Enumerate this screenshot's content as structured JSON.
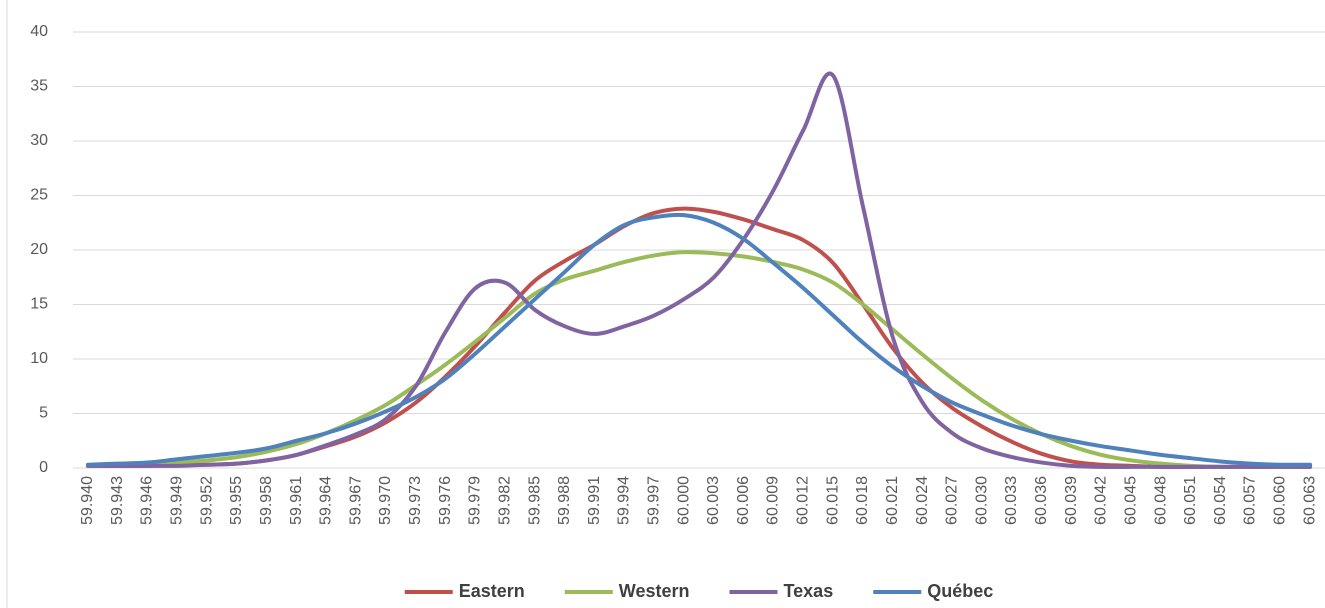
{
  "chart_data": {
    "type": "line",
    "categories": [
      "59.940",
      "59.943",
      "59.946",
      "59.949",
      "59.952",
      "59.955",
      "59.958",
      "59.961",
      "59.964",
      "59.967",
      "59.970",
      "59.973",
      "59.976",
      "59.979",
      "59.982",
      "59.985",
      "59.988",
      "59.991",
      "59.994",
      "59.997",
      "60.000",
      "60.003",
      "60.006",
      "60.009",
      "60.012",
      "60.015",
      "60.018",
      "60.021",
      "60.024",
      "60.027",
      "60.030",
      "60.033",
      "60.036",
      "60.039",
      "60.042",
      "60.045",
      "60.048",
      "60.051",
      "60.054",
      "60.057",
      "60.060",
      "60.063"
    ],
    "series": [
      {
        "name": "Eastern",
        "color": "#c0504d",
        "values": [
          0.2,
          0.2,
          0.2,
          0.3,
          0.3,
          0.4,
          0.7,
          1.2,
          2,
          2.9,
          4.2,
          6,
          8.4,
          11.2,
          14.3,
          17.2,
          19,
          20.5,
          22.2,
          23.4,
          23.8,
          23.5,
          22.8,
          21.9,
          20.9,
          18.8,
          15,
          11,
          7.8,
          5.5,
          3.8,
          2.4,
          1.3,
          0.6,
          0.3,
          0.2,
          0.1,
          0.1,
          0.1,
          0.1,
          0.1,
          0.1
        ]
      },
      {
        "name": "Western",
        "color": "#9bbb59",
        "values": [
          0.2,
          0.3,
          0.4,
          0.5,
          0.7,
          1,
          1.5,
          2.2,
          3.2,
          4.4,
          5.8,
          7.6,
          9.5,
          11.6,
          13.8,
          16,
          17.3,
          18.1,
          18.9,
          19.5,
          19.8,
          19.7,
          19.4,
          18.9,
          18.2,
          17,
          15,
          12.7,
          10.4,
          8.2,
          6.2,
          4.5,
          3.1,
          2,
          1.2,
          0.7,
          0.4,
          0.2,
          0.1,
          0.1,
          0.1,
          0.1
        ]
      },
      {
        "name": "Texas",
        "color": "#8064a2",
        "values": [
          0.2,
          0.2,
          0.2,
          0.2,
          0.3,
          0.4,
          0.7,
          1.2,
          2.1,
          3.1,
          4.5,
          7.5,
          12.5,
          16.5,
          17,
          14.5,
          13,
          12.3,
          13,
          14,
          15.5,
          17.5,
          21,
          25.5,
          31,
          36,
          24,
          12,
          6,
          3.2,
          1.8,
          1,
          0.5,
          0.2,
          0.1,
          0.1,
          0.1,
          0.1,
          0.1,
          0.1,
          0.1,
          0.1
        ]
      },
      {
        "name": "Québec",
        "color": "#4f81bd",
        "values": [
          0.3,
          0.4,
          0.5,
          0.8,
          1.1,
          1.4,
          1.8,
          2.5,
          3.2,
          4.1,
          5.2,
          6.5,
          8.2,
          10.5,
          13,
          15.5,
          18,
          20.5,
          22.3,
          23,
          23.2,
          22.5,
          21,
          18.8,
          16.5,
          14,
          11.5,
          9.3,
          7.5,
          6,
          4.9,
          3.9,
          3.1,
          2.5,
          2,
          1.6,
          1.2,
          0.9,
          0.6,
          0.4,
          0.3,
          0.3
        ]
      }
    ],
    "ylim": [
      0,
      40
    ],
    "yticks": [
      0,
      5,
      10,
      15,
      20,
      25,
      30,
      35,
      40
    ],
    "grid": true,
    "legend": "bottom"
  }
}
